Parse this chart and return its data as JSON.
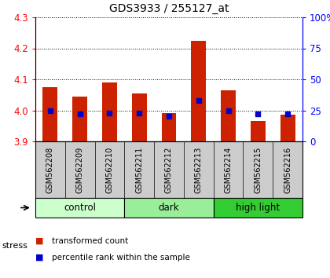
{
  "title": "GDS3933 / 255127_at",
  "samples": [
    "GSM562208",
    "GSM562209",
    "GSM562210",
    "GSM562211",
    "GSM562212",
    "GSM562213",
    "GSM562214",
    "GSM562215",
    "GSM562216"
  ],
  "transformed_counts": [
    4.075,
    4.045,
    4.09,
    4.055,
    3.992,
    4.225,
    4.065,
    3.965,
    3.985
  ],
  "percentile_ranks": [
    25,
    22,
    23,
    23,
    20,
    33,
    25,
    22,
    22
  ],
  "ylim_left": [
    3.9,
    4.3
  ],
  "ylim_right": [
    0,
    100
  ],
  "yticks_left": [
    3.9,
    4.0,
    4.1,
    4.2,
    4.3
  ],
  "yticks_right": [
    0,
    25,
    50,
    75,
    100
  ],
  "ytick_labels_right": [
    "0",
    "25",
    "50",
    "75",
    "100%"
  ],
  "groups": [
    {
      "label": "control",
      "indices": [
        0,
        1,
        2
      ],
      "color": "#ccffcc"
    },
    {
      "label": "dark",
      "indices": [
        3,
        4,
        5
      ],
      "color": "#99ee99"
    },
    {
      "label": "high light",
      "indices": [
        6,
        7,
        8
      ],
      "color": "#33cc33"
    }
  ],
  "bar_color_red": "#cc2200",
  "bar_color_blue": "#0000cc",
  "bar_width": 0.5,
  "baseline": 3.9,
  "bg_color": "#ffffff",
  "label_area_bg": "#cccccc",
  "stress_label": "stress",
  "legend_red": "transformed count",
  "legend_blue": "percentile rank within the sample"
}
